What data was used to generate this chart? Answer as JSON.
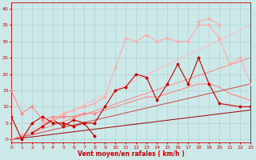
{
  "xlabel": "Vent moyen/en rafales ( km/h )",
  "xlim": [
    0,
    23
  ],
  "ylim": [
    -1,
    42
  ],
  "yticks": [
    0,
    5,
    10,
    15,
    20,
    25,
    30,
    35,
    40
  ],
  "xticks": [
    0,
    1,
    2,
    3,
    4,
    5,
    6,
    7,
    8,
    9,
    10,
    11,
    12,
    13,
    14,
    15,
    16,
    17,
    18,
    19,
    20,
    21,
    22,
    23
  ],
  "bg_color": "#cce8e8",
  "grid_color": "#aad4d4",
  "lines": [
    {
      "x": [
        0,
        1,
        2,
        3,
        4,
        5,
        6,
        7,
        8
      ],
      "y": [
        7,
        0,
        5,
        7,
        5,
        5,
        4,
        5,
        1
      ],
      "color": "#cc0000",
      "lw": 0.8,
      "marker": "D",
      "ms": 1.5
    },
    {
      "x": [
        2,
        3,
        4,
        5,
        6,
        7,
        8,
        9,
        10,
        11,
        12,
        13,
        14,
        15,
        16,
        17,
        18,
        19,
        20,
        22,
        23
      ],
      "y": [
        2,
        4,
        6,
        4,
        6,
        5,
        5,
        10,
        15,
        16,
        20,
        19,
        12,
        17,
        23,
        17,
        25,
        17,
        11,
        10,
        10
      ],
      "color": "#cc0000",
      "lw": 0.8,
      "marker": "D",
      "ms": 1.5
    },
    {
      "x": [
        0,
        1,
        2,
        3,
        4,
        5,
        6,
        7,
        8
      ],
      "y": [
        15,
        8,
        10,
        6,
        7,
        7,
        7,
        8,
        8
      ],
      "color": "#ff8888",
      "lw": 0.8,
      "marker": "D",
      "ms": 1.5
    },
    {
      "x": [
        3,
        4,
        5,
        6,
        7,
        8,
        9,
        10,
        11,
        12,
        13,
        14,
        15,
        16,
        17,
        18,
        19,
        20,
        21,
        22,
        23
      ],
      "y": [
        5,
        6,
        7,
        7,
        8,
        8,
        9,
        10,
        11,
        12,
        13,
        13,
        14,
        15,
        16,
        17,
        17,
        16,
        14,
        13,
        12
      ],
      "color": "#ff8888",
      "lw": 0.8,
      "marker": null,
      "ms": 0
    },
    {
      "x": [
        4,
        5,
        6,
        7,
        8,
        9,
        10,
        11,
        12,
        13,
        14,
        15,
        16,
        17,
        18,
        19,
        20,
        21,
        22,
        23
      ],
      "y": [
        6,
        8,
        9,
        10,
        11,
        13,
        22,
        31,
        30,
        32,
        30,
        31,
        30,
        30,
        35,
        35,
        31,
        23,
        25,
        17
      ],
      "color": "#ffaaaa",
      "lw": 0.8,
      "marker": "D",
      "ms": 1.5
    },
    {
      "x": [
        18,
        19,
        20
      ],
      "y": [
        36,
        37,
        35
      ],
      "color": "#ffaaaa",
      "lw": 0.8,
      "marker": "D",
      "ms": 1.5
    },
    {
      "x": [
        0,
        23
      ],
      "y": [
        0,
        9
      ],
      "color": "#990000",
      "lw": 0.7,
      "marker": null,
      "ms": 0
    },
    {
      "x": [
        0,
        23
      ],
      "y": [
        0,
        17
      ],
      "color": "#cc4444",
      "lw": 0.7,
      "marker": null,
      "ms": 0
    },
    {
      "x": [
        0,
        23
      ],
      "y": [
        0,
        25
      ],
      "color": "#ff8888",
      "lw": 0.7,
      "marker": null,
      "ms": 0
    },
    {
      "x": [
        0,
        23
      ],
      "y": [
        0,
        35
      ],
      "color": "#ffbbbb",
      "lw": 0.7,
      "marker": null,
      "ms": 0
    }
  ]
}
